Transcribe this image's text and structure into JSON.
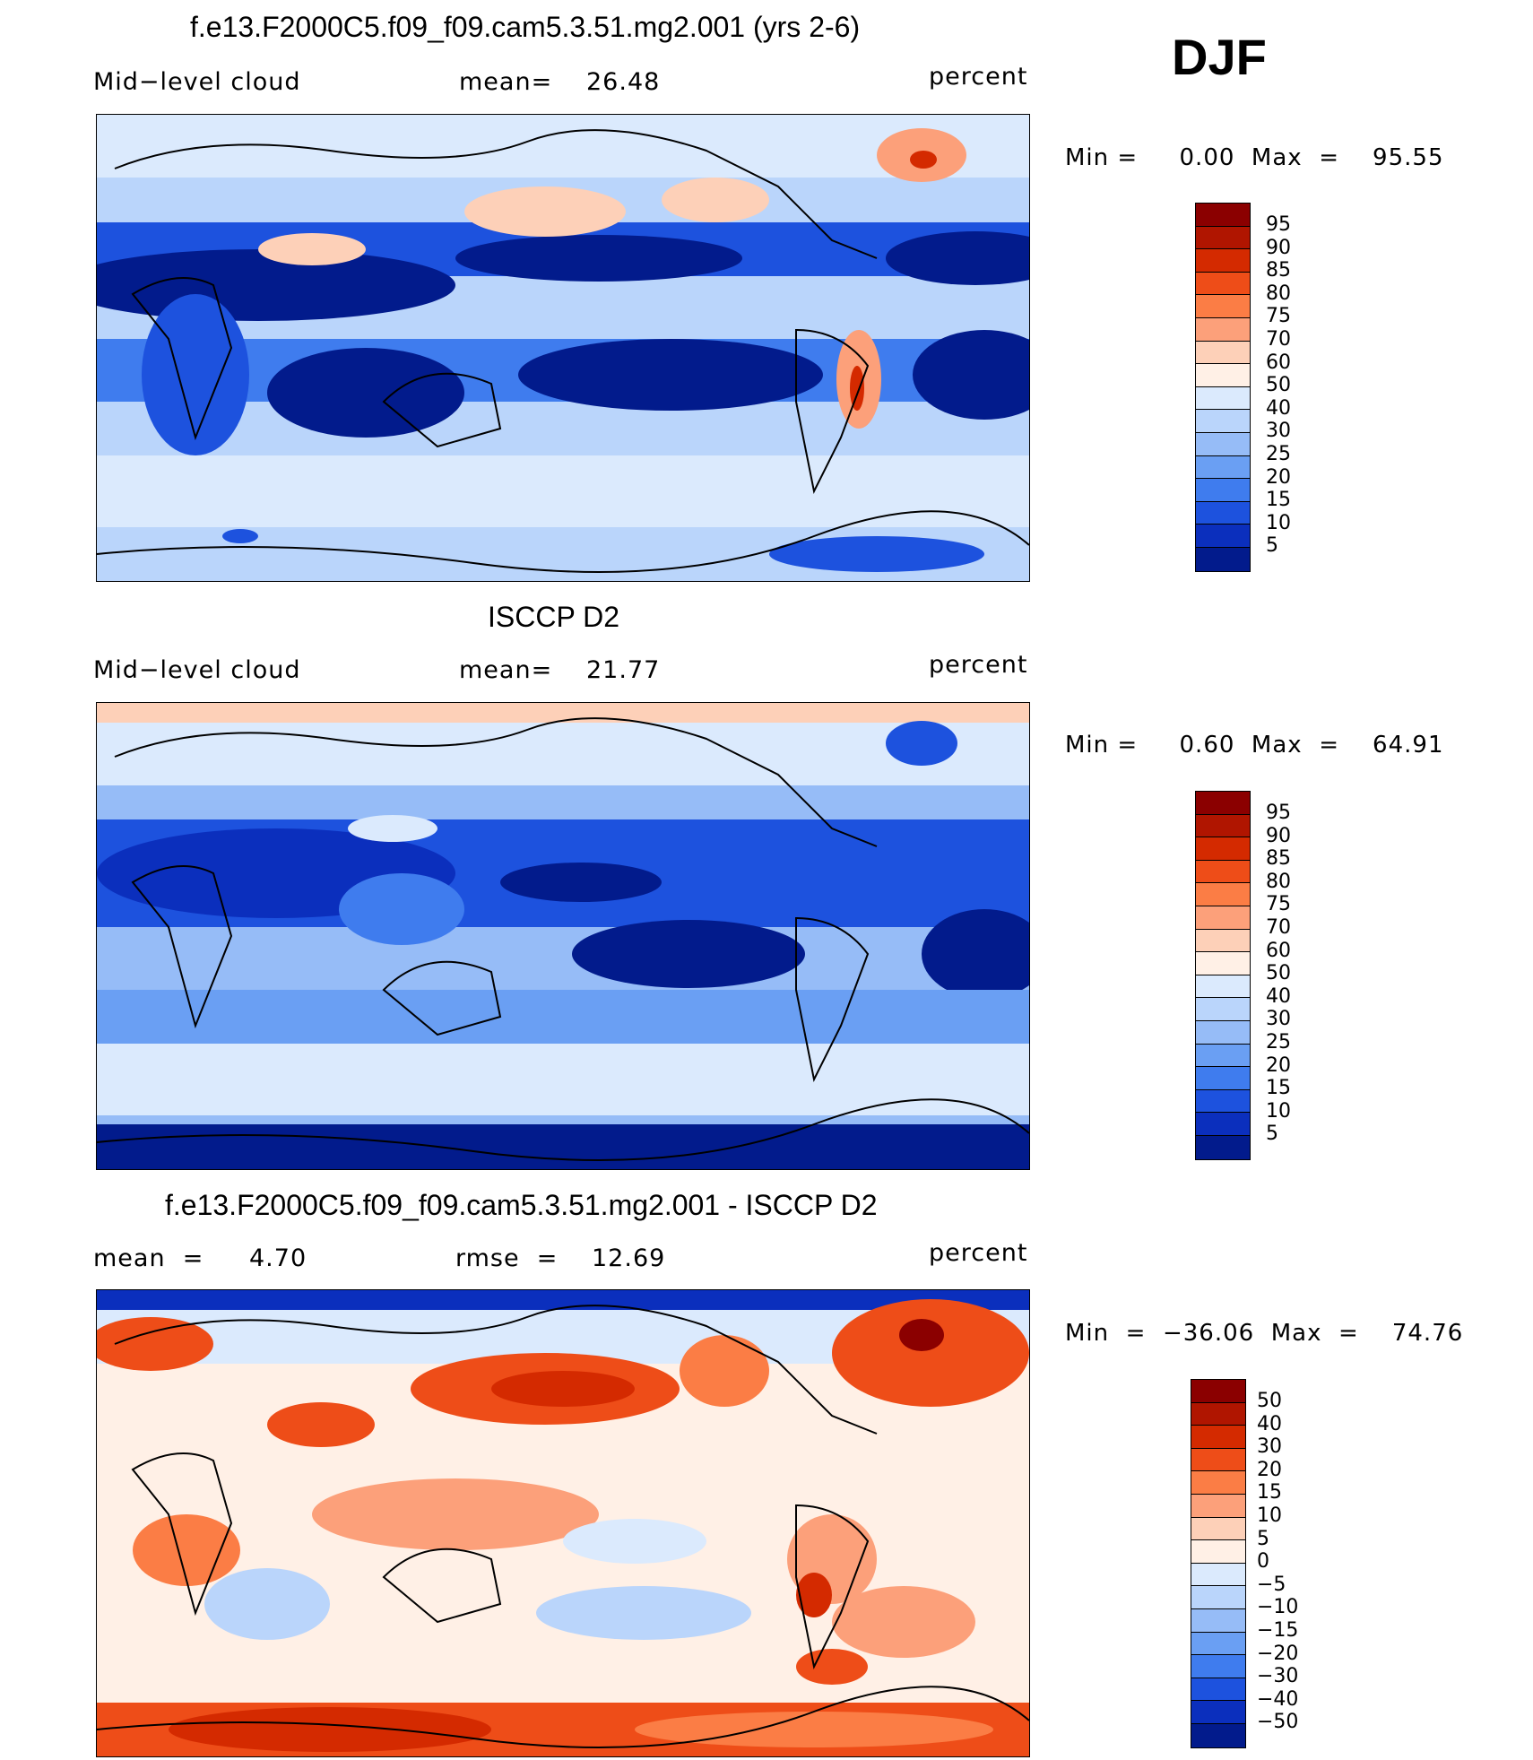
{
  "season": "DJF",
  "units_label": "percent",
  "panels": [
    {
      "title": "f.e13.F2000C5.f09_f09.cam5.3.51.mg2.001 (yrs 2-6)",
      "left_label": "Mid−level cloud",
      "stat_label": "mean=",
      "stat_value": "26.48",
      "minmax_text": "Min =     0.00  Max  =    95.55"
    },
    {
      "title": "ISCCP D2",
      "left_label": "Mid−level cloud",
      "stat_label": "mean=",
      "stat_value": "21.77",
      "minmax_text": "Min =     0.60  Max  =    64.91"
    },
    {
      "title": "f.e13.F2000C5.f09_f09.cam5.3.51.mg2.001 - ISCCP D2",
      "left_label": "mean  =",
      "left_value": "4.70",
      "stat_label": "rmse  =",
      "stat_value": "12.69",
      "minmax_text": "Min  =  −36.06  Max  =    74.76"
    }
  ],
  "colorbar_abs": {
    "labels": [
      "95",
      "90",
      "85",
      "80",
      "75",
      "70",
      "60",
      "50",
      "40",
      "30",
      "25",
      "20",
      "15",
      "10",
      "5"
    ],
    "colors": [
      "#8b0000",
      "#b01500",
      "#d42a00",
      "#ee4d18",
      "#fb7d45",
      "#fca07a",
      "#fdd0b8",
      "#fff0e6",
      "#dbeafd",
      "#bad5fb",
      "#96bcf7",
      "#6a9ff3",
      "#3f7cee",
      "#1d52de",
      "#0b2fbd",
      "#021b8c"
    ]
  },
  "colorbar_diff": {
    "labels": [
      "50",
      "40",
      "30",
      "20",
      "15",
      "10",
      "5",
      "0",
      "−5",
      "−10",
      "−15",
      "−20",
      "−30",
      "−40",
      "−50"
    ],
    "colors": [
      "#8b0000",
      "#b01500",
      "#d42a00",
      "#ee4d18",
      "#fb7d45",
      "#fca07a",
      "#fdd0b8",
      "#fff0e6",
      "#dbeafd",
      "#bad5fb",
      "#96bcf7",
      "#6a9ff3",
      "#3f7cee",
      "#1d52de",
      "#0b2fbd",
      "#021b8c"
    ]
  }
}
